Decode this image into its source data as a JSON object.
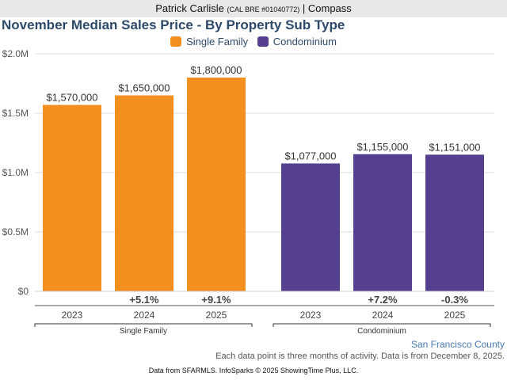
{
  "header": {
    "agent_name": "Patrick Carlisle",
    "license": "(CAL BRE #01040772)",
    "separator": "|",
    "brokerage": "Compass"
  },
  "colors": {
    "single_family": "#f28f1e",
    "condominium": "#553f8f",
    "title": "#2e4a6b",
    "county": "#4a7ab0"
  },
  "chart_data": {
    "type": "bar",
    "title": "November Median Sales Price - By Property Sub Type",
    "ylabel": "",
    "xlabel": "",
    "ylim": [
      0,
      2000000
    ],
    "yticks": [
      {
        "value": 0,
        "label": "$0"
      },
      {
        "value": 500000,
        "label": "$0.5M"
      },
      {
        "value": 1000000,
        "label": "$1.0M"
      },
      {
        "value": 1500000,
        "label": "$1.5M"
      },
      {
        "value": 2000000,
        "label": "$2.0M"
      }
    ],
    "grid": true,
    "legend_position": "top-center",
    "categories": [
      "2023",
      "2024",
      "2025"
    ],
    "series": [
      {
        "name": "Single Family",
        "group_label": "Single Family",
        "values": [
          1570000,
          1650000,
          1800000
        ],
        "labels": [
          "$1,570,000",
          "$1,650,000",
          "$1,800,000"
        ],
        "changes": [
          "",
          "+5.1%",
          "+9.1%"
        ]
      },
      {
        "name": "Condominium",
        "group_label": "Condominium",
        "values": [
          1077000,
          1155000,
          1151000
        ],
        "labels": [
          "$1,077,000",
          "$1,155,000",
          "$1,151,000"
        ],
        "changes": [
          "",
          "+7.2%",
          "-0.3%"
        ]
      }
    ]
  },
  "footer": {
    "county": "San Francisco County",
    "note": "Each data point is three months of activity. Data is from December 8, 2025.",
    "credit": "Data from SFARMLS. InfoSparks © 2025 ShowingTime Plus, LLC."
  }
}
